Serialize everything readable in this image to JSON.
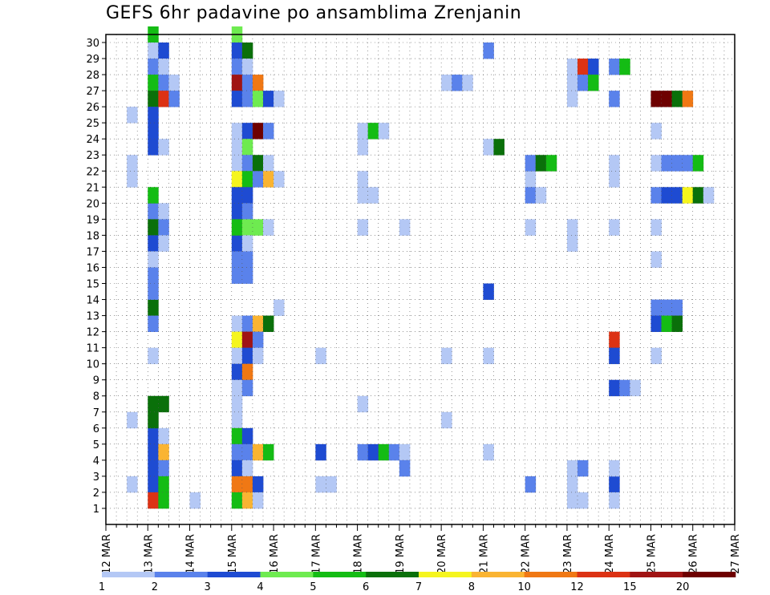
{
  "chart_data": {
    "type": "heatmap",
    "title": "GEFS 6hr padavine po ansamblima Zrenjanin",
    "xlabel": "",
    "ylabel": "",
    "x_tick_labels": [
      "12 MAR",
      "13 MAR",
      "14 MAR",
      "15 MAR",
      "16 MAR",
      "17 MAR",
      "18 MAR",
      "19 MAR",
      "20 MAR",
      "21 MAR",
      "22 MAR",
      "23 MAR",
      "24 MAR",
      "25 MAR",
      "26 MAR",
      "27 MAR"
    ],
    "x_range_steps": [
      0,
      60
    ],
    "y_tick_labels": [
      "1",
      "2",
      "3",
      "4",
      "5",
      "6",
      "7",
      "8",
      "9",
      "10",
      "11",
      "12",
      "13",
      "14",
      "15",
      "16",
      "17",
      "18",
      "19",
      "20",
      "21",
      "22",
      "23",
      "24",
      "25",
      "26",
      "27",
      "28",
      "29",
      "30"
    ],
    "y_range": [
      0,
      30
    ],
    "grid": "dotted",
    "colorbar": {
      "levels": [
        "1",
        "2",
        "3",
        "4",
        "5",
        "6",
        "7",
        "8",
        "10",
        "12",
        "15",
        "20"
      ],
      "colors": [
        "#b4c8f5",
        "#5a82eb",
        "#1e4bd2",
        "#6eeb50",
        "#14bc14",
        "#0a700a",
        "#f5f51e",
        "#fab432",
        "#f07814",
        "#dc3214",
        "#a01414",
        "#6e0000"
      ]
    },
    "cells": [
      [
        1,
        30,
        4
      ],
      [
        3,
        30,
        3
      ],
      [
        1,
        29,
        0
      ],
      [
        1,
        29,
        2
      ],
      [
        1,
        28,
        1
      ],
      [
        1,
        28,
        0
      ],
      [
        1,
        27,
        4
      ],
      [
        1,
        27,
        1
      ],
      [
        1,
        27,
        0
      ],
      [
        1,
        26,
        5
      ],
      [
        1,
        26,
        9
      ],
      [
        1,
        26,
        1
      ],
      [
        1,
        25,
        2
      ],
      [
        1,
        24,
        2
      ],
      [
        1,
        23,
        2
      ],
      [
        1,
        23,
        0
      ],
      [
        1,
        19,
        1
      ],
      [
        1,
        19,
        0
      ],
      [
        1,
        18,
        5
      ],
      [
        1,
        18,
        1
      ],
      [
        1,
        17,
        2
      ],
      [
        1,
        17,
        0
      ],
      [
        1,
        16,
        0
      ],
      [
        1,
        5,
        2
      ],
      [
        1,
        5,
        0
      ],
      [
        1,
        4,
        2
      ],
      [
        1,
        4,
        7
      ],
      [
        1,
        3,
        2
      ],
      [
        1,
        3,
        1
      ],
      [
        1,
        2,
        2
      ],
      [
        1,
        2,
        4
      ],
      [
        1,
        1,
        9
      ],
      [
        1,
        1,
        4
      ],
      [
        1,
        20,
        4
      ],
      [
        1,
        13,
        5
      ],
      [
        1,
        12,
        1
      ],
      [
        1,
        10,
        0
      ],
      [
        1,
        7,
        5
      ],
      [
        1,
        7,
        5
      ],
      [
        1,
        6,
        5
      ],
      [
        1,
        15,
        1
      ],
      [
        1,
        14,
        1
      ],
      [
        0,
        25,
        0
      ],
      [
        0,
        22,
        0
      ],
      [
        0,
        21,
        0
      ],
      [
        0,
        6,
        0
      ],
      [
        0,
        2,
        0
      ],
      [
        2,
        1,
        0
      ],
      [
        3,
        17,
        2
      ],
      [
        3,
        29,
        2
      ],
      [
        3,
        29,
        5
      ],
      [
        3,
        28,
        1
      ],
      [
        3,
        28,
        0
      ],
      [
        3,
        27,
        10
      ],
      [
        3,
        27,
        1
      ],
      [
        3,
        27,
        8
      ],
      [
        3,
        26,
        2
      ],
      [
        3,
        26,
        1
      ],
      [
        3,
        26,
        3
      ],
      [
        3,
        26,
        2
      ],
      [
        3,
        26,
        0
      ],
      [
        3,
        24,
        0
      ],
      [
        3,
        24,
        2
      ],
      [
        3,
        24,
        11
      ],
      [
        3,
        24,
        1
      ],
      [
        3,
        23,
        0
      ],
      [
        3,
        23,
        3
      ],
      [
        3,
        22,
        0
      ],
      [
        3,
        22,
        1
      ],
      [
        3,
        22,
        5
      ],
      [
        3,
        22,
        0
      ],
      [
        3,
        21,
        6
      ],
      [
        3,
        21,
        4
      ],
      [
        3,
        21,
        1
      ],
      [
        3,
        21,
        7
      ],
      [
        3,
        21,
        0
      ],
      [
        3,
        20,
        2
      ],
      [
        3,
        20,
        2
      ],
      [
        3,
        19,
        2
      ],
      [
        3,
        19,
        1
      ],
      [
        3,
        18,
        4
      ],
      [
        3,
        18,
        3
      ],
      [
        3,
        18,
        3
      ],
      [
        3,
        18,
        0
      ],
      [
        3,
        17,
        0
      ],
      [
        3,
        16,
        1
      ],
      [
        3,
        16,
        1
      ],
      [
        3,
        15,
        1
      ],
      [
        3,
        15,
        1
      ],
      [
        3,
        12,
        0
      ],
      [
        3,
        12,
        1
      ],
      [
        3,
        12,
        7
      ],
      [
        3,
        12,
        5
      ],
      [
        3,
        11,
        6
      ],
      [
        3,
        11,
        10
      ],
      [
        3,
        11,
        1
      ],
      [
        3,
        10,
        0
      ],
      [
        3,
        10,
        2
      ],
      [
        3,
        10,
        0
      ],
      [
        3,
        9,
        2
      ],
      [
        3,
        9,
        8
      ],
      [
        3,
        8,
        0
      ],
      [
        3,
        8,
        1
      ],
      [
        3,
        7,
        0
      ],
      [
        3,
        6,
        0
      ],
      [
        3,
        5,
        4
      ],
      [
        3,
        5,
        2
      ],
      [
        3,
        4,
        1
      ],
      [
        3,
        4,
        1
      ],
      [
        3,
        4,
        7
      ],
      [
        3,
        4,
        4
      ],
      [
        3,
        3,
        2
      ],
      [
        3,
        3,
        0
      ],
      [
        3,
        2,
        8
      ],
      [
        3,
        2,
        8
      ],
      [
        3,
        2,
        2
      ],
      [
        3,
        1,
        4
      ],
      [
        3,
        1,
        7
      ],
      [
        3,
        1,
        0
      ],
      [
        4,
        13,
        0
      ],
      [
        5,
        10,
        0
      ],
      [
        5,
        4,
        2
      ],
      [
        5,
        2,
        0
      ],
      [
        5,
        2,
        0
      ],
      [
        6,
        4,
        1
      ],
      [
        6,
        4,
        2
      ],
      [
        6,
        4,
        4
      ],
      [
        6,
        4,
        1
      ],
      [
        6,
        24,
        0
      ],
      [
        6,
        24,
        4
      ],
      [
        6,
        24,
        0
      ],
      [
        6,
        23,
        0
      ],
      [
        6,
        21,
        0
      ],
      [
        6,
        20,
        0
      ],
      [
        6,
        20,
        0
      ],
      [
        6,
        18,
        0
      ],
      [
        6,
        7,
        0
      ],
      [
        7,
        4,
        0
      ],
      [
        7,
        3,
        1
      ],
      [
        7,
        18,
        0
      ],
      [
        8,
        27,
        0
      ],
      [
        8,
        27,
        1
      ],
      [
        8,
        27,
        0
      ],
      [
        8,
        10,
        0
      ],
      [
        8,
        6,
        0
      ],
      [
        9,
        29,
        1
      ],
      [
        9,
        23,
        0
      ],
      [
        9,
        23,
        5
      ],
      [
        9,
        14,
        2
      ],
      [
        9,
        10,
        0
      ],
      [
        9,
        4,
        0
      ],
      [
        10,
        21,
        0
      ],
      [
        10,
        2,
        1
      ],
      [
        10,
        20,
        1
      ],
      [
        10,
        20,
        0
      ],
      [
        10,
        22,
        1
      ],
      [
        10,
        22,
        5
      ],
      [
        10,
        22,
        4
      ],
      [
        10,
        18,
        0
      ],
      [
        11,
        28,
        0
      ],
      [
        11,
        28,
        9
      ],
      [
        11,
        28,
        2
      ],
      [
        11,
        27,
        0
      ],
      [
        11,
        27,
        1
      ],
      [
        11,
        27,
        4
      ],
      [
        11,
        26,
        0
      ],
      [
        11,
        3,
        0
      ],
      [
        11,
        3,
        1
      ],
      [
        11,
        2,
        0
      ],
      [
        11,
        1,
        0
      ],
      [
        11,
        1,
        0
      ],
      [
        11,
        17,
        0
      ],
      [
        11,
        18,
        0
      ],
      [
        12,
        28,
        1
      ],
      [
        12,
        28,
        4
      ],
      [
        12,
        11,
        9
      ],
      [
        12,
        10,
        2
      ],
      [
        12,
        8,
        2
      ],
      [
        12,
        8,
        1
      ],
      [
        12,
        8,
        0
      ],
      [
        12,
        2,
        2
      ],
      [
        12,
        1,
        0
      ],
      [
        12,
        26,
        1
      ],
      [
        12,
        22,
        0
      ],
      [
        12,
        21,
        0
      ],
      [
        12,
        3,
        0
      ],
      [
        12,
        18,
        0
      ],
      [
        13,
        26,
        11
      ],
      [
        13,
        26,
        11
      ],
      [
        13,
        26,
        5
      ],
      [
        13,
        26,
        8
      ],
      [
        13,
        22,
        0
      ],
      [
        13,
        22,
        1
      ],
      [
        13,
        22,
        1
      ],
      [
        13,
        22,
        1
      ],
      [
        13,
        22,
        4
      ],
      [
        13,
        20,
        1
      ],
      [
        13,
        20,
        2
      ],
      [
        13,
        20,
        2
      ],
      [
        13,
        20,
        6
      ],
      [
        13,
        20,
        5
      ],
      [
        13,
        20,
        0
      ],
      [
        13,
        13,
        1
      ],
      [
        13,
        13,
        1
      ],
      [
        13,
        13,
        1
      ],
      [
        13,
        12,
        2
      ],
      [
        13,
        12,
        4
      ],
      [
        13,
        12,
        5
      ],
      [
        13,
        24,
        0
      ],
      [
        13,
        18,
        0
      ],
      [
        13,
        16,
        0
      ],
      [
        13,
        10,
        0
      ]
    ]
  }
}
